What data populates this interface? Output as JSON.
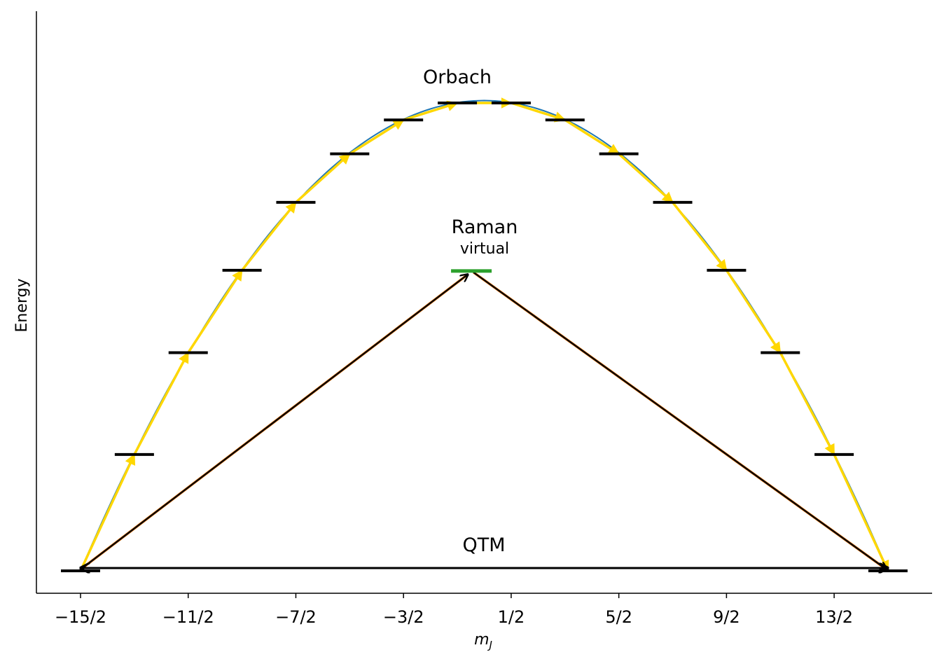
{
  "chart_data": {
    "type": "line",
    "xlabel": "m_J",
    "xlabel_main": "m",
    "xlabel_sub": "J",
    "ylabel": "Energy",
    "xlim": [
      -8.3,
      8.3
    ],
    "ylim": [
      -0.5,
      11.6
    ],
    "x_ticks": [
      -7.5,
      -5.5,
      -3.5,
      -1.5,
      0.5,
      2.5,
      4.5,
      6.5
    ],
    "x_tick_labels": [
      "−15/2",
      "−11/2",
      "−7/2",
      "−3/2",
      "1/2",
      "5/2",
      "9/2",
      "13/2"
    ],
    "levels": {
      "x": [
        -7.5,
        -6.5,
        -5.5,
        -4.5,
        -3.5,
        -2.5,
        -1.5,
        -0.5,
        0.5,
        1.5,
        2.5,
        3.5,
        4.5,
        5.5,
        6.5,
        7.5
      ],
      "energy": [
        0.0,
        2.4,
        4.5,
        6.2,
        7.6,
        8.6,
        9.3,
        9.65,
        9.65,
        9.3,
        8.6,
        7.6,
        6.2,
        4.5,
        2.4,
        0.0
      ]
    },
    "curve": {
      "x_range": [
        -7.5,
        7.5
      ],
      "peak_x": 0.0,
      "peak_energy": 9.7,
      "color": "#1f77b4"
    },
    "orbach_path_color": "#ffd700",
    "raman": {
      "virtual_level_x": -0.5,
      "virtual_level_energy": 6.2,
      "virtual_level_color": "#2ca02c"
    },
    "qtm": {
      "from_x": -7.5,
      "to_x": 7.5,
      "energy": 0.0
    },
    "annotations": {
      "orbach": "Orbach",
      "raman": "Raman",
      "virtual": "virtual",
      "qtm": "QTM"
    },
    "colors": {
      "level": "#000000",
      "arrow": "#000000",
      "raman_arrow_edge": "#ff7f0e"
    }
  }
}
